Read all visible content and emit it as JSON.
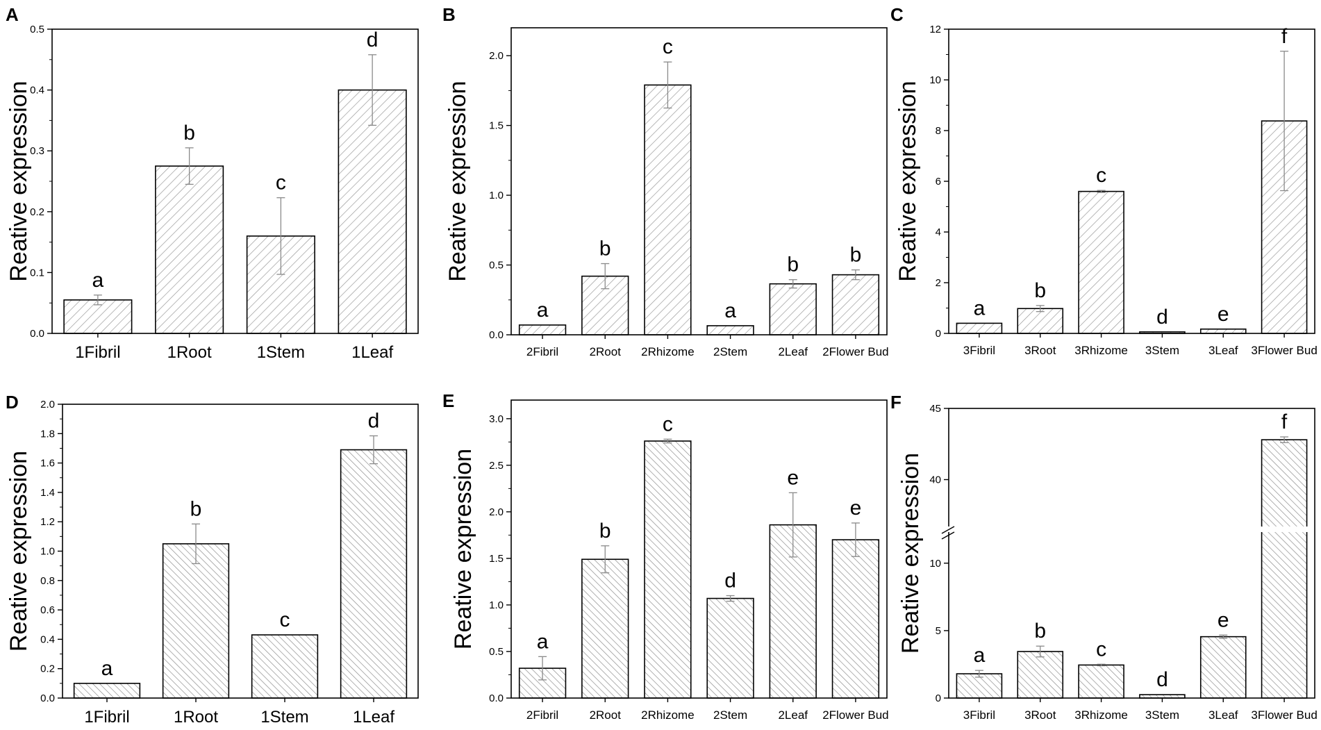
{
  "hatch_color": "#9a9a9a",
  "errorbar_color": "#8a8a8a",
  "chart_data": [
    {
      "panel": "A",
      "type": "bar",
      "ylabel": "Reative expression",
      "categories": [
        "1Fibril",
        "1Root",
        "1Stem",
        "1Leaf"
      ],
      "values": [
        0.055,
        0.275,
        0.16,
        0.4
      ],
      "errors": [
        0.008,
        0.03,
        0.063,
        0.058
      ],
      "letters": [
        "a",
        "b",
        "c",
        "d"
      ],
      "ylim": [
        0,
        0.5
      ],
      "yticks": [
        0.0,
        0.1,
        0.2,
        0.3,
        0.4,
        0.5
      ],
      "ytick_labels": [
        "0.0",
        "0.1",
        "0.2",
        "0.3",
        "0.4",
        "0.5"
      ]
    },
    {
      "panel": "B",
      "type": "bar",
      "ylabel": "Reative expression",
      "categories": [
        "2Fibril",
        "2Root",
        "2Rhizome",
        "2Stem",
        "2Leaf",
        "2Flower Bud"
      ],
      "values": [
        0.07,
        0.42,
        1.79,
        0.065,
        0.365,
        0.43
      ],
      "errors": [
        0.0,
        0.09,
        0.165,
        0.0,
        0.03,
        0.035
      ],
      "letters": [
        "a",
        "b",
        "c",
        "a",
        "b",
        "b"
      ],
      "ylim": [
        0,
        2.2
      ],
      "yticks": [
        0.0,
        0.5,
        1.0,
        1.5,
        2.0
      ],
      "ytick_labels": [
        "0.0",
        "0.5",
        "1.0",
        "1.5",
        "2.0"
      ]
    },
    {
      "panel": "C",
      "type": "bar",
      "ylabel": "Reative expression",
      "categories": [
        "3Fibril",
        "3Root",
        "3Rhizome",
        "3Stem",
        "3Leaf",
        "3Flower Bud"
      ],
      "values": [
        0.4,
        0.98,
        5.6,
        0.06,
        0.17,
        8.38
      ],
      "errors": [
        0.0,
        0.12,
        0.04,
        0.0,
        0.0,
        2.75
      ],
      "letters": [
        "a",
        "b",
        "c",
        "d",
        "e",
        "f"
      ],
      "ylim": [
        0,
        12
      ],
      "yticks": [
        0,
        2,
        4,
        6,
        8,
        10,
        12
      ],
      "ytick_labels": [
        "0",
        "2",
        "4",
        "6",
        "8",
        "10",
        "12"
      ]
    },
    {
      "panel": "D",
      "type": "bar",
      "ylabel": "Reative expression",
      "categories": [
        "1Fibril",
        "1Root",
        "1Stem",
        "1Leaf"
      ],
      "values": [
        0.1,
        1.05,
        0.43,
        1.69
      ],
      "errors": [
        0.0,
        0.135,
        0.0,
        0.095
      ],
      "letters": [
        "a",
        "b",
        "c",
        "d"
      ],
      "ylim": [
        0,
        2.0
      ],
      "yticks": [
        0.0,
        0.2,
        0.4,
        0.6,
        0.8,
        1.0,
        1.2,
        1.4,
        1.6,
        1.8,
        2.0
      ],
      "ytick_labels": [
        "0.0",
        "0.2",
        "0.4",
        "0.6",
        "0.8",
        "1.0",
        "1.2",
        "1.4",
        "1.6",
        "1.8",
        "2.0"
      ]
    },
    {
      "panel": "E",
      "type": "bar",
      "ylabel": "Reative expression",
      "categories": [
        "2Fibril",
        "2Root",
        "2Rhizome",
        "2Stem",
        "2Leaf",
        "2Flower Bud"
      ],
      "values": [
        0.32,
        1.49,
        2.76,
        1.07,
        1.86,
        1.7
      ],
      "errors": [
        0.125,
        0.145,
        0.02,
        0.03,
        0.345,
        0.18
      ],
      "letters": [
        "a",
        "b",
        "c",
        "d",
        "e",
        "e"
      ],
      "ylim": [
        0,
        3.2
      ],
      "yticks": [
        0.0,
        0.5,
        1.0,
        1.5,
        2.0,
        2.5,
        3.0
      ],
      "ytick_labels": [
        "0.0",
        "0.5",
        "1.0",
        "1.5",
        "2.0",
        "2.5",
        "3.0"
      ]
    },
    {
      "panel": "F",
      "type": "bar",
      "ylabel": "Reative expression",
      "categories": [
        "3Fibril",
        "3Root",
        "3Rhizome",
        "3Stem",
        "3Leaf",
        "3Flower Bud"
      ],
      "values": [
        1.8,
        3.45,
        2.45,
        0.25,
        4.55,
        42.8
      ],
      "errors": [
        0.25,
        0.4,
        0.06,
        0.0,
        0.12,
        0.2
      ],
      "letters": [
        "a",
        "b",
        "c",
        "d",
        "e",
        "f"
      ],
      "ylim": [
        0,
        45
      ],
      "yaxis_break": [
        12,
        37
      ],
      "yticks": [
        0,
        5,
        10,
        40,
        45
      ],
      "ytick_labels": [
        "0",
        "5",
        "10",
        "40",
        "45"
      ]
    }
  ]
}
